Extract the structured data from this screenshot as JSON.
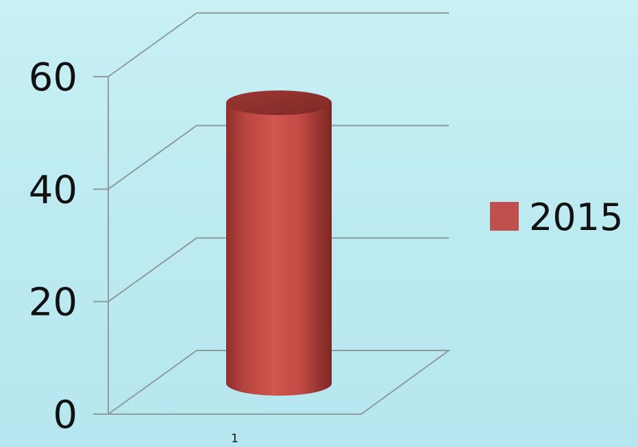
{
  "chart_data": {
    "type": "bar",
    "style": "3d-cylinder",
    "categories": [
      "1"
    ],
    "series": [
      {
        "name": "2015",
        "values": [
          48
        ],
        "color": "#c0504d"
      }
    ],
    "yticks": [
      0,
      20,
      40,
      60
    ],
    "ylim": [
      0,
      60
    ],
    "grid": true,
    "legend": "right"
  }
}
